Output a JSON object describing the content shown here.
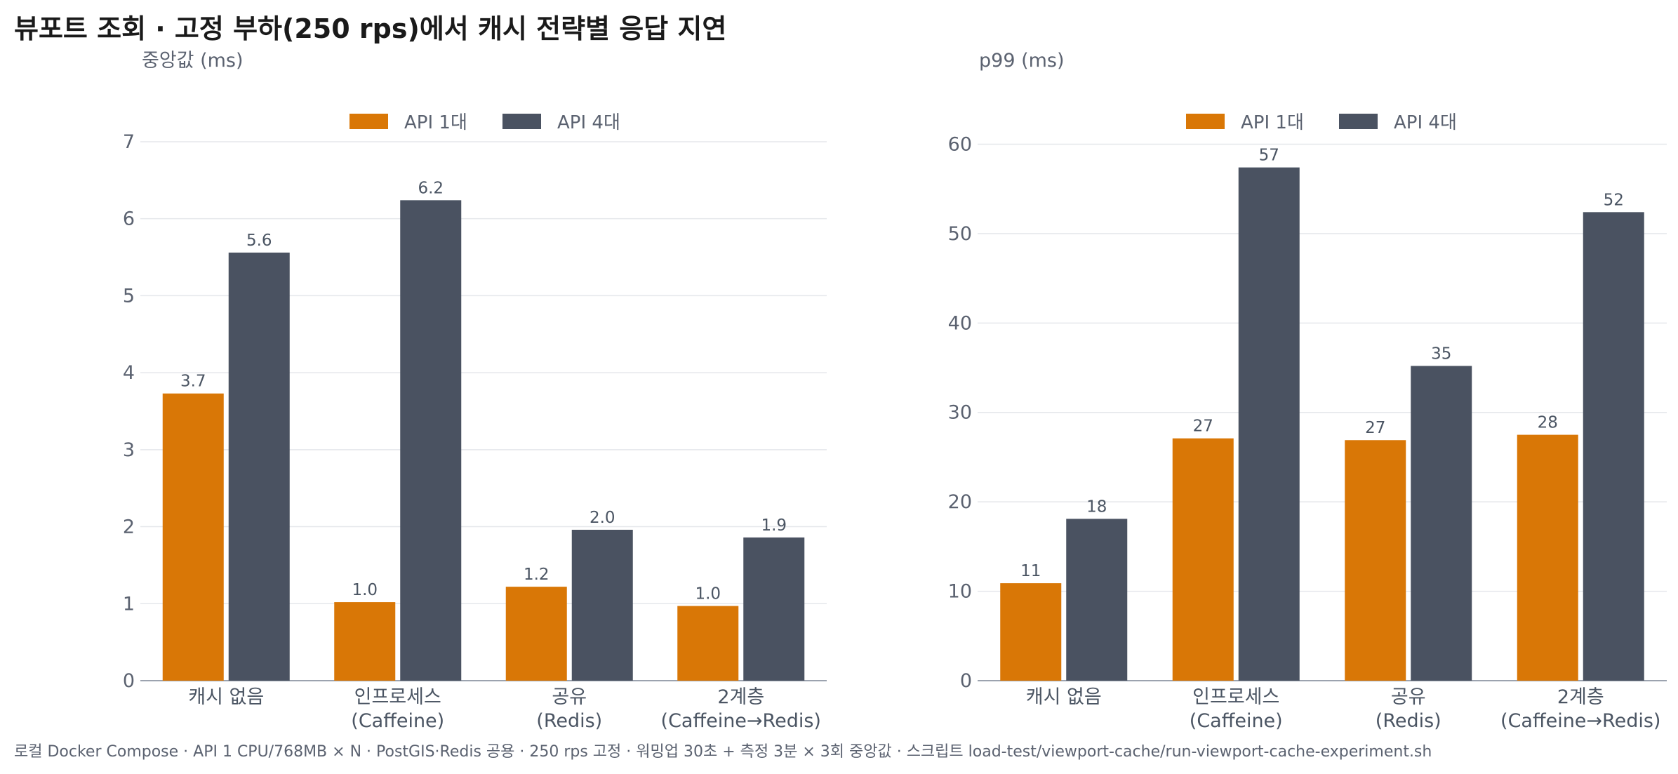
{
  "title": "뷰포트 조회 · 고정 부하(250 rps)에서 캐시 전략별 응답 지연",
  "footer": "로컬 Docker Compose · API 1 CPU/768MB × N · PostGIS·Redis 공용 · 250 rps 고정 · 워밍업 30초 + 측정 3분 × 3회 중앙값 · 스크립트 load-test/viewport-cache/run-viewport-cache-experiment.sh",
  "colors": {
    "series_1": "#d97706",
    "series_2": "#4a5261",
    "grid": "#e5e7eb",
    "axis": "#9ca3af"
  },
  "chart_data": [
    {
      "type": "bar",
      "ylabel": "중앙값 (ms)",
      "categories": [
        [
          "캐시 없음"
        ],
        [
          "인프로세스",
          "(Caffeine)"
        ],
        [
          "공유",
          "(Redis)"
        ],
        [
          "2계층",
          "(Caffeine→Redis)"
        ]
      ],
      "series": [
        {
          "name": "API 1대",
          "values": [
            3.73,
            1.02,
            1.22,
            0.97
          ],
          "labels": [
            "3.7",
            "1.0",
            "1.2",
            "1.0"
          ]
        },
        {
          "name": "API 4대",
          "values": [
            5.56,
            6.24,
            1.96,
            1.86
          ],
          "labels": [
            "5.6",
            "6.2",
            "2.0",
            "1.9"
          ]
        }
      ],
      "ylim": [
        0,
        7.2
      ],
      "yticks": [
        0,
        1,
        2,
        3,
        4,
        5,
        6,
        7
      ],
      "grid": true,
      "legend": "top-center"
    },
    {
      "type": "bar",
      "ylabel": "p99 (ms)",
      "categories": [
        [
          "캐시 없음"
        ],
        [
          "인프로세스",
          "(Caffeine)"
        ],
        [
          "공유",
          "(Redis)"
        ],
        [
          "2계층",
          "(Caffeine→Redis)"
        ]
      ],
      "series": [
        {
          "name": "API 1대",
          "values": [
            10.9,
            27.1,
            26.9,
            27.5
          ],
          "labels": [
            "11",
            "27",
            "27",
            "28"
          ]
        },
        {
          "name": "API 4대",
          "values": [
            18.1,
            57.4,
            35.2,
            52.4
          ],
          "labels": [
            "18",
            "57",
            "35",
            "52"
          ]
        }
      ],
      "ylim": [
        0,
        62
      ],
      "yticks": [
        0,
        10,
        20,
        30,
        40,
        50,
        60
      ],
      "grid": true,
      "legend": "top-center"
    }
  ]
}
